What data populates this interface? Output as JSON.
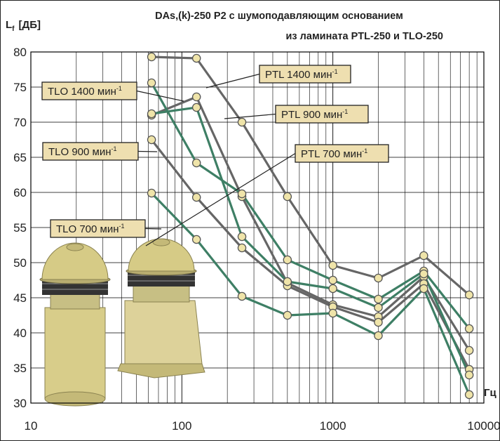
{
  "chart_data": {
    "type": "line",
    "title_line1": "DAs,(k)-250 P2  с шумоподавляющим основанием",
    "title_line2": "из ламината PTL-250 и TLO-250",
    "ylabel": "L",
    "ylabel_sub": "f",
    "ylabel_unit": "[ДБ]",
    "xlabel": "Гц",
    "x_scale": "log",
    "xlim": [
      10,
      10000
    ],
    "ylim": [
      30,
      80
    ],
    "grid": true,
    "x_ticks": [
      "10",
      "100",
      "1000",
      "10000"
    ],
    "y_ticks": [
      "30",
      "35",
      "40",
      "45",
      "50",
      "55",
      "60",
      "65",
      "70",
      "75",
      "80"
    ],
    "x": [
      63,
      125,
      250,
      500,
      1000,
      2000,
      4000,
      8000
    ],
    "series": [
      {
        "name": "PTL 1400 мин",
        "color": "#666666",
        "values": [
          79.3,
          79.1,
          70.0,
          59.4,
          49.6,
          47.8,
          51.0,
          45.4
        ]
      },
      {
        "name": "PTL 900 мин",
        "color": "#666666",
        "values": [
          71.0,
          73.6,
          59.4,
          47.1,
          44.0,
          42.3,
          48.0,
          37.5
        ]
      },
      {
        "name": "PTL 700 мин",
        "color": "#666666",
        "values": [
          67.5,
          59.3,
          52.1,
          46.7,
          43.7,
          41.5,
          47.0,
          34.8
        ]
      },
      {
        "name": "TLO 1400 мин",
        "color": "#3e7f65",
        "values": [
          75.6,
          64.2,
          59.8,
          50.4,
          47.5,
          44.8,
          48.8,
          40.6
        ]
      },
      {
        "name": "TLO 900 мин",
        "color": "#3e7f65",
        "values": [
          71.2,
          72.1,
          53.7,
          47.3,
          46.3,
          43.6,
          48.4,
          34.0
        ]
      },
      {
        "name": "TLO 700 мин",
        "color": "#3e7f65",
        "values": [
          59.9,
          53.3,
          45.2,
          42.5,
          42.8,
          39.6,
          46.3,
          31.2
        ]
      }
    ],
    "callouts": [
      {
        "series": "PTL 1400 мин",
        "label": "PTL 1400 мин",
        "sup": "-1"
      },
      {
        "series": "PTL 900 мин",
        "label": "PTL 900 мин",
        "sup": "-1"
      },
      {
        "series": "PTL 700 мин",
        "label": "PTL 700 мин",
        "sup": "-1"
      },
      {
        "series": "TLO 1400 мин",
        "label": "TLO 1400 мин",
        "sup": "-1"
      },
      {
        "series": "TLO 900 мин",
        "label": "TLO 900 мин",
        "sup": "-1"
      },
      {
        "series": "TLO 700 мин",
        "label": "TLO 700 мин",
        "sup": "-1"
      }
    ],
    "colors": {
      "grid": "#000000",
      "callout_fill": "#eedfb0",
      "marker_fill": "#efe4a9",
      "product": "#d8cd8a"
    }
  }
}
